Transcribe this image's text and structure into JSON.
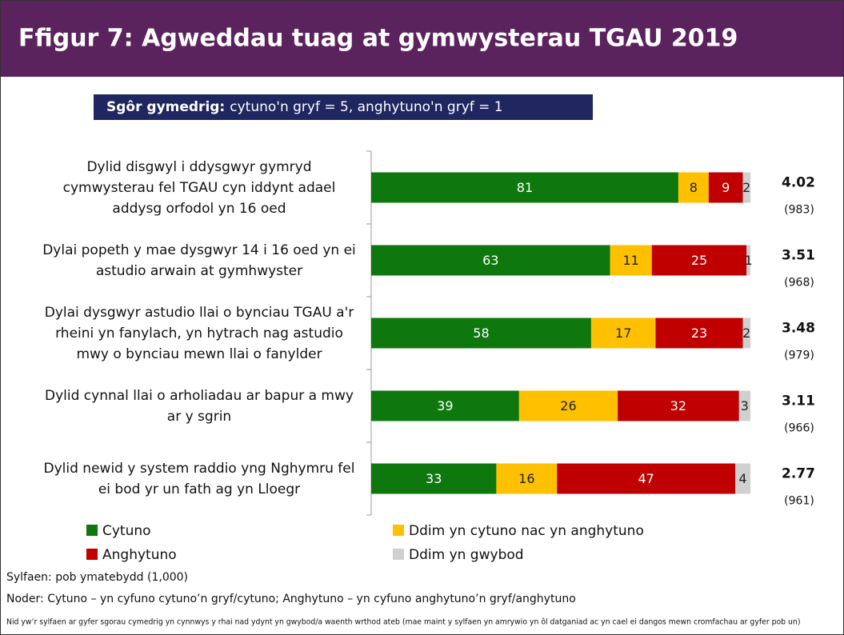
{
  "chart_data": {
    "type": "stacked-barh",
    "title": "Ffigur 7: Agweddau tuag at gymwysterau TGAU 2019",
    "subtitle_bold": "Sgôr gymedrig:",
    "subtitle": "cytuno'n gryf = 5, anghytuno'n gryf = 1",
    "categories": [
      "Dylid disgwyl i ddysgwyr gymryd cymwysterau fel TGAU cyn iddynt adael addysg orfodol yn 16 oed",
      "Dylai popeth y mae dysgwyr 14 i 16 oed yn ei astudio arwain at gymhwyster",
      "Dylai dysgwyr astudio llai o bynciau TGAU a'r rheini yn fanylach, yn hytrach nag astudio mwy o bynciau mewn llai o fanylder",
      "Dylid cynnal llai o arholiadau ar bapur a mwy ar y sgrin",
      "Dylid newid y system raddio yng Nghymru fel ei bod yr un fath ag yn Lloegr"
    ],
    "series": [
      {
        "name": "Cytuno",
        "color": "#0e780e",
        "values": [
          81,
          63,
          58,
          39,
          33
        ]
      },
      {
        "name": "Ddim yn cytuno nac yn anghytuno",
        "color": "#ffc000",
        "values": [
          8,
          11,
          17,
          26,
          16
        ]
      },
      {
        "name": "Anghytuno",
        "color": "#c00000",
        "values": [
          9,
          25,
          23,
          32,
          47
        ]
      },
      {
        "name": "Ddim yn gwybod",
        "color": "#d0d0d0",
        "values": [
          2,
          1,
          2,
          3,
          4
        ]
      }
    ],
    "xlim": [
      0,
      100
    ],
    "mean_scores": [
      4.02,
      3.51,
      3.48,
      3.11,
      2.77
    ],
    "sample_sizes": [
      983,
      968,
      979,
      966,
      961
    ],
    "sample_size_labels": [
      "(983)",
      "(968)",
      "(979)",
      "(966)",
      "(961)"
    ],
    "notes": [
      "Sylfaen: pob ymatebydd (1,000)",
      "Noder: Cytuno – yn cyfuno cytuno’n gryf/cytuno; Anghytuno – yn cyfuno anghytuno’n gryf/anghytuno",
      "Nid yw’r sylfaen ar gyfer sgorau cymedrig yn cynnwys y rhai nad ydynt yn gwybod/a waenth wrthod ateb (mae maint y sylfaen yn amrywio yn ôl datganiad ac yn cael ei dangos mewn cromfachau ar gyfer pob un)"
    ]
  }
}
